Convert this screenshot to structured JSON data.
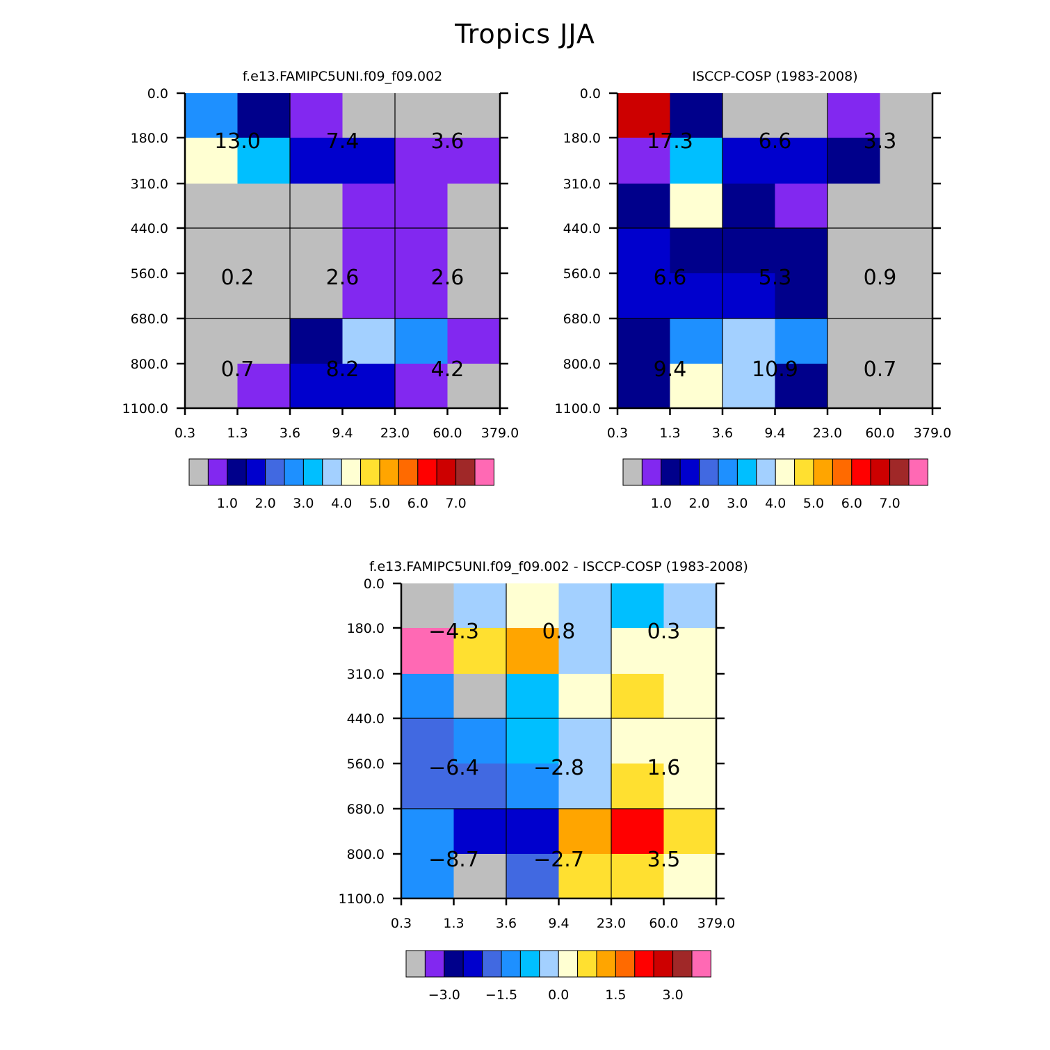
{
  "figure_title": "Tropics JJA",
  "chart_data": [
    {
      "type": "heatmap",
      "title": "f.e13.FAMIPC5UNI.f09_f09.002",
      "x_ticks": [
        "0.3",
        "1.3",
        "3.6",
        "9.4",
        "23.0",
        "60.0",
        "379.0"
      ],
      "y_ticks": [
        "0.0",
        "180.0",
        "310.0",
        "440.0",
        "560.0",
        "680.0",
        "800.0",
        "1100.0"
      ],
      "cell_colors": [
        [
          "#1E90FF",
          "#00008B",
          "#8228F0",
          "#BEBEBE",
          "#BEBEBE",
          "#BEBEBE"
        ],
        [
          "#FFFFD2",
          "#00BFFF",
          "#0000CD",
          "#0000CD",
          "#8228F0",
          "#8228F0"
        ],
        [
          "#BEBEBE",
          "#BEBEBE",
          "#BEBEBE",
          "#8228F0",
          "#8228F0",
          "#BEBEBE"
        ],
        [
          "#BEBEBE",
          "#BEBEBE",
          "#BEBEBE",
          "#8228F0",
          "#8228F0",
          "#BEBEBE"
        ],
        [
          "#BEBEBE",
          "#BEBEBE",
          "#BEBEBE",
          "#8228F0",
          "#8228F0",
          "#BEBEBE"
        ],
        [
          "#BEBEBE",
          "#BEBEBE",
          "#00008B",
          "#A3D0FF",
          "#1E90FF",
          "#8228F0"
        ],
        [
          "#BEBEBE",
          "#8228F0",
          "#0000CD",
          "#0000CD",
          "#8228F0",
          "#BEBEBE"
        ]
      ],
      "box_values": [
        [
          "13.0",
          "7.4",
          "3.6"
        ],
        [
          "0.2",
          "2.6",
          "2.6"
        ],
        [
          "0.7",
          "8.2",
          "4.2"
        ]
      ],
      "colorbar": {
        "colors": [
          "#BEBEBE",
          "#8228F0",
          "#00008B",
          "#0000CD",
          "#4169E1",
          "#1E90FF",
          "#00BFFF",
          "#A3D0FF",
          "#FFFFD2",
          "#FFE030",
          "#FFA500",
          "#FF6A00",
          "#FF0000",
          "#CD0000",
          "#A02828",
          "#FF69B4"
        ],
        "labels": [
          "1.0",
          "2.0",
          "3.0",
          "4.0",
          "5.0",
          "6.0",
          "7.0"
        ]
      }
    },
    {
      "type": "heatmap",
      "title": "ISCCP-COSP (1983-2008)",
      "x_ticks": [
        "0.3",
        "1.3",
        "3.6",
        "9.4",
        "23.0",
        "60.0",
        "379.0"
      ],
      "y_ticks": [
        "0.0",
        "180.0",
        "310.0",
        "440.0",
        "560.0",
        "680.0",
        "800.0",
        "1100.0"
      ],
      "cell_colors": [
        [
          "#CD0000",
          "#00008B",
          "#BEBEBE",
          "#BEBEBE",
          "#8228F0",
          "#BEBEBE"
        ],
        [
          "#8228F0",
          "#00BFFF",
          "#0000CD",
          "#0000CD",
          "#00008B",
          "#BEBEBE"
        ],
        [
          "#00008B",
          "#FFFFD2",
          "#00008B",
          "#8228F0",
          "#BEBEBE",
          "#BEBEBE"
        ],
        [
          "#0000CD",
          "#00008B",
          "#00008B",
          "#00008B",
          "#BEBEBE",
          "#BEBEBE"
        ],
        [
          "#0000CD",
          "#0000CD",
          "#0000CD",
          "#00008B",
          "#BEBEBE",
          "#BEBEBE"
        ],
        [
          "#00008B",
          "#1E90FF",
          "#A3D0FF",
          "#1E90FF",
          "#BEBEBE",
          "#BEBEBE"
        ],
        [
          "#00008B",
          "#FFFFD2",
          "#A3D0FF",
          "#00008B",
          "#BEBEBE",
          "#BEBEBE"
        ]
      ],
      "box_values": [
        [
          "17.3",
          "6.6",
          "3.3"
        ],
        [
          "6.6",
          "5.3",
          "0.9"
        ],
        [
          "9.4",
          "10.9",
          "0.7"
        ]
      ],
      "colorbar": {
        "colors": [
          "#BEBEBE",
          "#8228F0",
          "#00008B",
          "#0000CD",
          "#4169E1",
          "#1E90FF",
          "#00BFFF",
          "#A3D0FF",
          "#FFFFD2",
          "#FFE030",
          "#FFA500",
          "#FF6A00",
          "#FF0000",
          "#CD0000",
          "#A02828",
          "#FF69B4"
        ],
        "labels": [
          "1.0",
          "2.0",
          "3.0",
          "4.0",
          "5.0",
          "6.0",
          "7.0"
        ]
      }
    },
    {
      "type": "heatmap",
      "title": "f.e13.FAMIPC5UNI.f09_f09.002 - ISCCP-COSP (1983-2008)",
      "x_ticks": [
        "0.3",
        "1.3",
        "3.6",
        "9.4",
        "23.0",
        "60.0",
        "379.0"
      ],
      "y_ticks": [
        "0.0",
        "180.0",
        "310.0",
        "440.0",
        "560.0",
        "680.0",
        "800.0",
        "1100.0"
      ],
      "cell_colors": [
        [
          "#BEBEBE",
          "#A3D0FF",
          "#FFFFD2",
          "#A3D0FF",
          "#00BFFF",
          "#A3D0FF"
        ],
        [
          "#FF69B4",
          "#FFE030",
          "#FFA500",
          "#A3D0FF",
          "#FFFFD2",
          "#FFFFD2"
        ],
        [
          "#1E90FF",
          "#BEBEBE",
          "#00BFFF",
          "#FFFFD2",
          "#FFE030",
          "#FFFFD2"
        ],
        [
          "#4169E1",
          "#1E90FF",
          "#00BFFF",
          "#A3D0FF",
          "#FFFFD2",
          "#FFFFD2"
        ],
        [
          "#4169E1",
          "#4169E1",
          "#1E90FF",
          "#A3D0FF",
          "#FFE030",
          "#FFFFD2"
        ],
        [
          "#1E90FF",
          "#0000CD",
          "#0000CD",
          "#FFA500",
          "#FF0000",
          "#FFE030"
        ],
        [
          "#1E90FF",
          "#BEBEBE",
          "#4169E1",
          "#FFE030",
          "#FFE030",
          "#FFFFD2"
        ]
      ],
      "box_values": [
        [
          "-4.3",
          "0.8",
          "0.3"
        ],
        [
          "-6.4",
          "-2.8",
          "1.6"
        ],
        [
          "-8.7",
          "-2.7",
          "3.5"
        ]
      ],
      "colorbar": {
        "colors": [
          "#BEBEBE",
          "#8228F0",
          "#00008B",
          "#0000CD",
          "#4169E1",
          "#1E90FF",
          "#00BFFF",
          "#A3D0FF",
          "#FFFFD2",
          "#FFE030",
          "#FFA500",
          "#FF6A00",
          "#FF0000",
          "#CD0000",
          "#A02828",
          "#FF69B4"
        ],
        "labels": [
          "-3.0",
          "-1.5",
          "0.0",
          "1.5",
          "3.0"
        ]
      }
    }
  ]
}
